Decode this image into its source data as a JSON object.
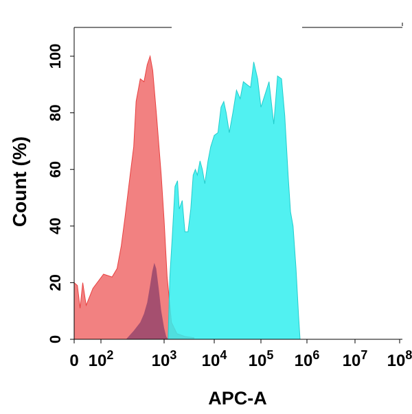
{
  "chart_data": {
    "type": "area",
    "xlabel": "APC-A",
    "ylabel": "Count  (%)",
    "x_scale": "log",
    "xlim": [
      0,
      100000000
    ],
    "ylim": [
      0,
      100
    ],
    "x_tick_labels": [
      {
        "base": "0",
        "exp": ""
      },
      {
        "base": "10",
        "exp": "2"
      },
      {
        "base": "10",
        "exp": "3"
      },
      {
        "base": "10",
        "exp": "4"
      },
      {
        "base": "10",
        "exp": "5"
      },
      {
        "base": "10",
        "exp": "6"
      },
      {
        "base": "10",
        "exp": "7"
      },
      {
        "base": "10",
        "exp": "8"
      }
    ],
    "y_ticks": [
      0,
      20,
      40,
      60,
      80,
      100
    ],
    "grid": false,
    "series": [
      {
        "color": "#f06b6b",
        "points": [
          [
            0,
            20
          ],
          [
            12,
            19
          ],
          [
            22,
            11
          ],
          [
            32,
            20
          ],
          [
            45,
            12
          ],
          [
            70,
            18
          ],
          [
            110,
            23
          ],
          [
            150,
            22
          ],
          [
            180,
            25
          ],
          [
            210,
            33
          ],
          [
            240,
            43
          ],
          [
            290,
            58
          ],
          [
            330,
            68
          ],
          [
            360,
            84
          ],
          [
            420,
            92
          ],
          [
            480,
            91
          ],
          [
            540,
            97
          ],
          [
            600,
            100
          ],
          [
            660,
            95
          ],
          [
            760,
            79
          ],
          [
            900,
            58
          ],
          [
            1000,
            42
          ],
          [
            1150,
            22
          ],
          [
            1400,
            6
          ],
          [
            1800,
            2
          ],
          [
            2600,
            1
          ],
          [
            4000,
            0.5
          ]
        ]
      },
      {
        "color": "#33eeee",
        "points": [
          [
            1200,
            0
          ],
          [
            1300,
            22
          ],
          [
            1450,
            36
          ],
          [
            1650,
            54
          ],
          [
            1850,
            56
          ],
          [
            2000,
            46
          ],
          [
            2300,
            49
          ],
          [
            2600,
            38
          ],
          [
            3000,
            38
          ],
          [
            3400,
            46
          ],
          [
            3800,
            58
          ],
          [
            4200,
            60
          ],
          [
            4600,
            58
          ],
          [
            5200,
            63
          ],
          [
            5800,
            60
          ],
          [
            6500,
            55
          ],
          [
            7500,
            63
          ],
          [
            8500,
            68
          ],
          [
            10000,
            72
          ],
          [
            12000,
            73
          ],
          [
            14000,
            82
          ],
          [
            16000,
            84
          ],
          [
            18000,
            80
          ],
          [
            21000,
            73
          ],
          [
            25000,
            80
          ],
          [
            30000,
            88
          ],
          [
            36000,
            85
          ],
          [
            42000,
            91
          ],
          [
            50000,
            90
          ],
          [
            60000,
            89
          ],
          [
            70000,
            98
          ],
          [
            85000,
            92
          ],
          [
            100000,
            82
          ],
          [
            120000,
            86
          ],
          [
            150000,
            91
          ],
          [
            190000,
            76
          ],
          [
            230000,
            93
          ],
          [
            280000,
            92
          ],
          [
            330000,
            79
          ],
          [
            390000,
            58
          ],
          [
            440000,
            45
          ],
          [
            500000,
            40
          ],
          [
            580000,
            25
          ],
          [
            660000,
            8
          ],
          [
            710000,
            0
          ]
        ]
      }
    ],
    "overlap": {
      "color": "#8b3f6a",
      "points": [
        [
          250,
          0
        ],
        [
          330,
          3
        ],
        [
          420,
          6
        ],
        [
          480,
          9
        ],
        [
          540,
          13
        ],
        [
          600,
          19
        ],
        [
          650,
          24
        ],
        [
          700,
          27
        ],
        [
          750,
          25
        ],
        [
          820,
          18
        ],
        [
          900,
          10
        ],
        [
          1000,
          4
        ],
        [
          1100,
          1
        ],
        [
          1200,
          0
        ]
      ]
    }
  }
}
